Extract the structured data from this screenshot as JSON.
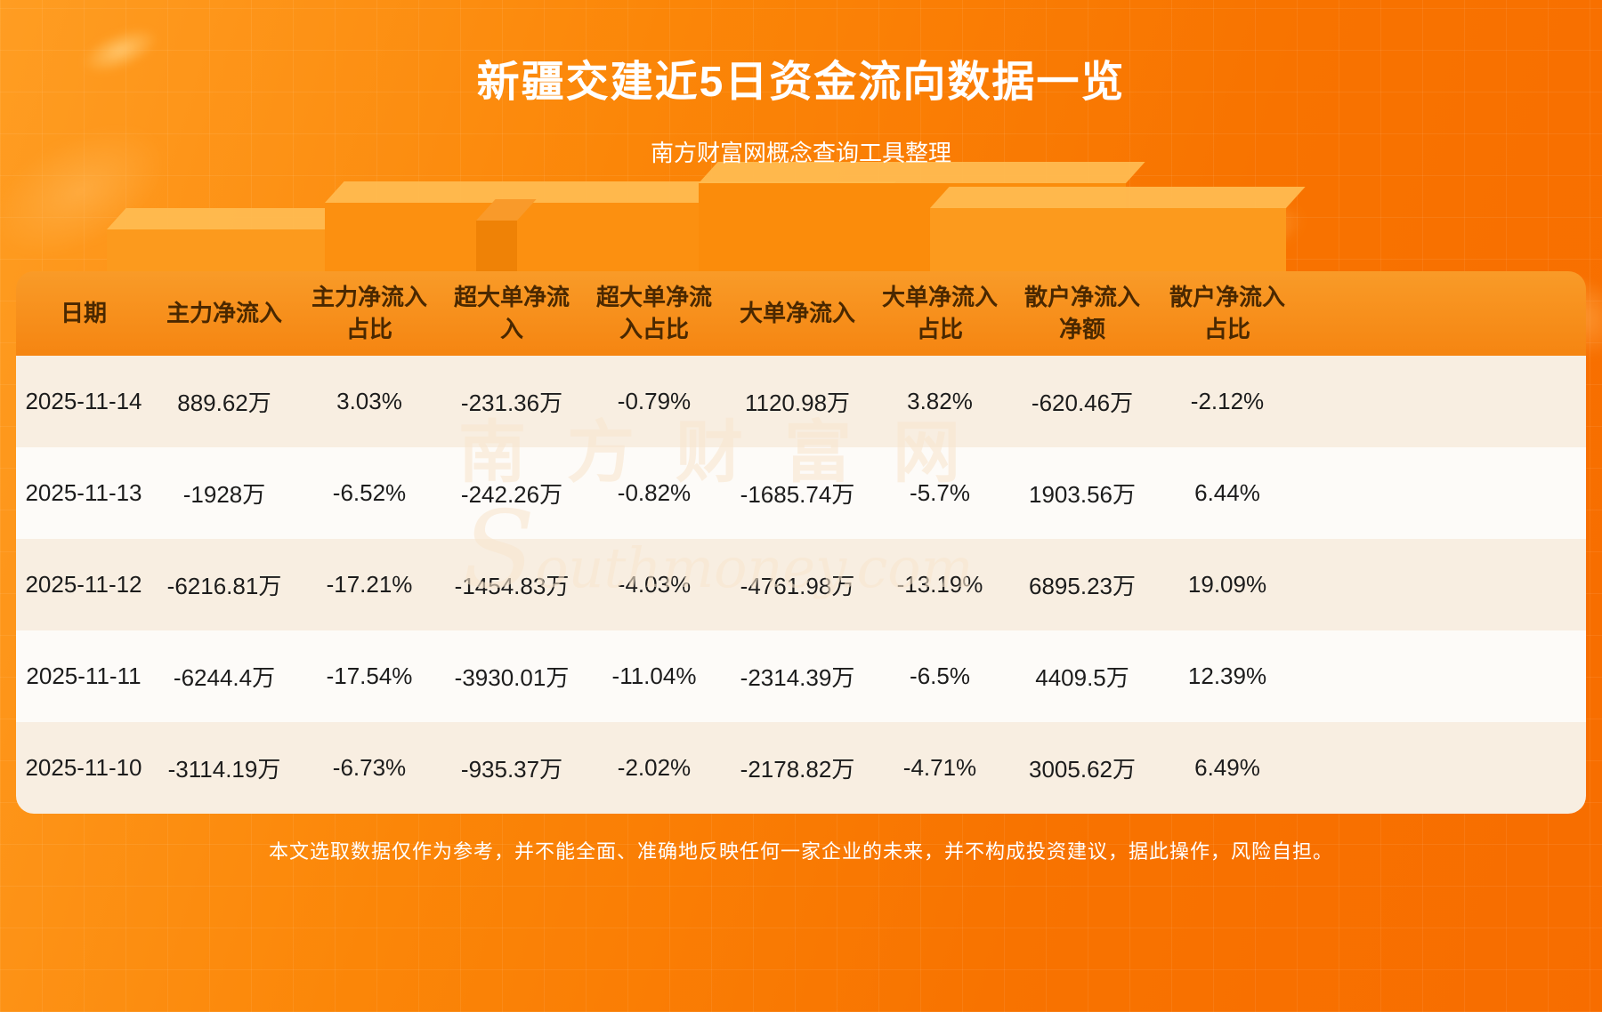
{
  "page": {
    "title": "新疆交建近5日资金流向数据一览",
    "subtitle": "南方财富网概念查询工具整理",
    "disclaimer": "本文选取数据仅作为参考，并不能全面、准确地反映任何一家企业的未来，并不构成投资建议，据此操作，风险自担。"
  },
  "watermark": {
    "line_cn": "南方财富网",
    "line_en": "Southmoney.com"
  },
  "colors": {
    "background_top": "#ff9d22",
    "background_deep": "#f76d00",
    "header_background": "#f68c18",
    "header_text": "#4a2800",
    "row_cream": "#f8eee1",
    "row_white": "#fdfbf8",
    "body_text": "#1c1c1c",
    "title_text": "#ffffff"
  },
  "chart_data": {
    "type": "table",
    "title": "新疆交建近5日资金流向数据一览",
    "columns": [
      "日期",
      "主力净流入",
      "主力净流入占比",
      "超大单净流入",
      "超大单净流入占比",
      "大单净流入",
      "大单净流入占比",
      "散户净流入净额",
      "散户净流入占比"
    ],
    "rows": [
      [
        "2025-11-14",
        "889.62万",
        "3.03%",
        "-231.36万",
        "-0.79%",
        "1120.98万",
        "3.82%",
        "-620.46万",
        "-2.12%"
      ],
      [
        "2025-11-13",
        "-1928万",
        "-6.52%",
        "-242.26万",
        "-0.82%",
        "-1685.74万",
        "-5.7%",
        "1903.56万",
        "6.44%"
      ],
      [
        "2025-11-12",
        "-6216.81万",
        "-17.21%",
        "-1454.83万",
        "-4.03%",
        "-4761.98万",
        "-13.19%",
        "6895.23万",
        "19.09%"
      ],
      [
        "2025-11-11",
        "-6244.4万",
        "-17.54%",
        "-3930.01万",
        "-11.04%",
        "-2314.39万",
        "-6.5%",
        "4409.5万",
        "12.39%"
      ],
      [
        "2025-11-10",
        "-3114.19万",
        "-6.73%",
        "-935.37万",
        "-2.02%",
        "-2178.82万",
        "-4.71%",
        "3005.62万",
        "6.49%"
      ]
    ]
  }
}
